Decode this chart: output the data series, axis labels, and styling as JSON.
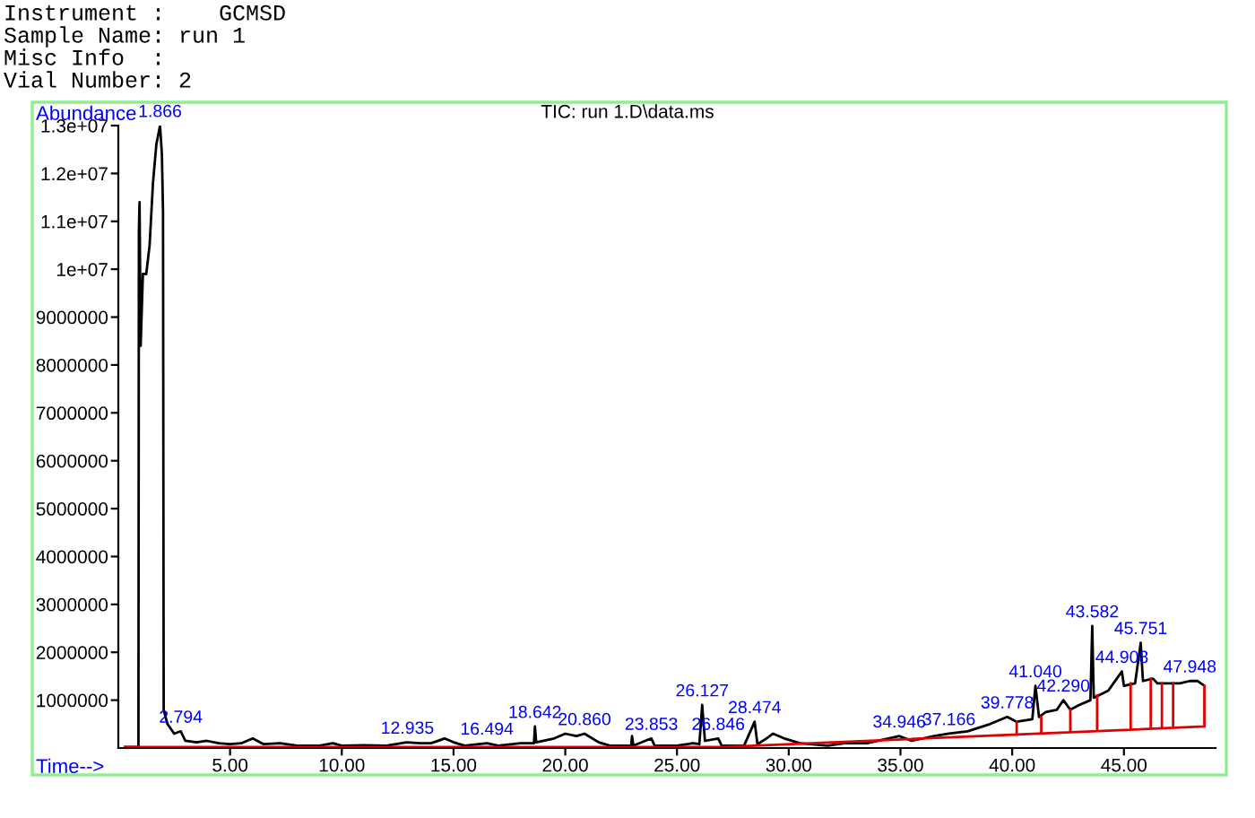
{
  "chart_data": {
    "type": "line",
    "title": "TIC: run 1.D\\data.ms",
    "xlabel": "Time-->",
    "ylabel": "Abundance",
    "xlim": [
      0.0,
      49.1
    ],
    "ylim": [
      0,
      13000000
    ],
    "xticks": [
      {
        "value": 5,
        "label": "5.00"
      },
      {
        "value": 10,
        "label": "10.00"
      },
      {
        "value": 15,
        "label": "15.00"
      },
      {
        "value": 20,
        "label": "20.00"
      },
      {
        "value": 25,
        "label": "25.00"
      },
      {
        "value": 30,
        "label": "30.00"
      },
      {
        "value": 35,
        "label": "35.00"
      },
      {
        "value": 40,
        "label": "40.00"
      },
      {
        "value": 45,
        "label": "45.00"
      }
    ],
    "yticks": [
      1000000,
      2000000,
      3000000,
      4000000,
      5000000,
      6000000,
      7000000,
      8000000,
      9000000,
      {
        "value": 10000000,
        "label": "1e+07"
      },
      {
        "value": 11000000,
        "label": "1.1e+07"
      },
      {
        "value": 12000000,
        "label": "1.2e+07"
      },
      {
        "value": 13000000,
        "label": "1.3e+07"
      }
    ],
    "grid": false,
    "legend": false,
    "series": [
      {
        "color": "#000000",
        "x": [
          0.3,
          0.9,
          0.92,
          0.95,
          1.0,
          1.1,
          1.25,
          1.4,
          1.55,
          1.7,
          1.866,
          1.95,
          2.0,
          2.03,
          2.2,
          2.5,
          2.794,
          3.0,
          3.5,
          3.96,
          4.5,
          5.0,
          5.5,
          6.015,
          6.5,
          7.241,
          8.0,
          9.0,
          9.6,
          10.0,
          11.0,
          12.0,
          12.9,
          13.5,
          14.0,
          14.6,
          15.0,
          15.5,
          16.494,
          17.0,
          18.0,
          18.6,
          18.642,
          18.7,
          19.5,
          20.0,
          20.5,
          20.86,
          21.5,
          22.0,
          22.95,
          22.987,
          23.05,
          23.853,
          24.0,
          25.0,
          25.717,
          26.0,
          26.127,
          26.25,
          26.846,
          27.0,
          28.0,
          28.474,
          28.6,
          29.0,
          29.3,
          29.8,
          30.5,
          31.739,
          32.5,
          33.5,
          34.946,
          35.5,
          36.5,
          37.166,
          38.0,
          39.0,
          39.778,
          40.2,
          40.9,
          41.04,
          41.2,
          41.5,
          42.0,
          42.29,
          42.6,
          43.0,
          43.5,
          43.582,
          43.65,
          44.3,
          44.908,
          45.0,
          45.5,
          45.751,
          45.85,
          46.3,
          46.5,
          47.0,
          47.5,
          47.948,
          48.3,
          48.6
        ],
        "values": [
          20000,
          20000,
          10800000,
          11400000,
          8400000,
          9900000,
          9900000,
          10500000,
          11800000,
          12600000,
          13000000,
          12400000,
          11200000,
          800000,
          500000,
          300000,
          350000,
          150000,
          120000,
          150000,
          100000,
          80000,
          100000,
          200000,
          80000,
          100000,
          50000,
          50000,
          100000,
          50000,
          60000,
          50000,
          120000,
          100000,
          100000,
          200000,
          120000,
          50000,
          100000,
          50000,
          100000,
          100000,
          450000,
          120000,
          200000,
          300000,
          250000,
          300000,
          120000,
          50000,
          50000,
          250000,
          50000,
          200000,
          50000,
          50000,
          100000,
          80000,
          900000,
          150000,
          200000,
          50000,
          50000,
          550000,
          80000,
          200000,
          300000,
          200000,
          100000,
          50000,
          100000,
          100000,
          250000,
          150000,
          250000,
          300000,
          350000,
          500000,
          650000,
          550000,
          600000,
          1300000,
          650000,
          750000,
          800000,
          1000000,
          800000,
          900000,
          1000000,
          2550000,
          1050000,
          1200000,
          1600000,
          1300000,
          1350000,
          2200000,
          1400000,
          1450000,
          1350000,
          1350000,
          1350000,
          1400000,
          1400000,
          1300000
        ]
      },
      {
        "color": "#e00000",
        "x": [
          0.3,
          27.0,
          48.6,
          48.6,
          48.6,
          null,
          40.2,
          40.2,
          null,
          41.3,
          41.3,
          null,
          42.6,
          42.6,
          null,
          43.8,
          43.8,
          null,
          45.3,
          45.3,
          null,
          46.2,
          46.2,
          null,
          46.7,
          46.7,
          null,
          47.2,
          47.2
        ],
        "values": [
          20000,
          20000,
          450000,
          1300000,
          450000,
          null,
          280000,
          550000,
          null,
          310000,
          650000,
          null,
          350000,
          800000,
          null,
          370000,
          1100000,
          null,
          400000,
          1350000,
          null,
          420000,
          1450000,
          null,
          430000,
          1350000,
          null,
          440000,
          1350000
        ]
      }
    ],
    "annotations": [
      "Instrument :    GCMSD",
      "Sample Name: run 1",
      "Misc Info  :",
      "Vial Number: 2",
      {
        "text": "1.866",
        "x": 1.866,
        "y": 13000000
      },
      {
        "text": "2.794",
        "x": 2.794,
        "y": 350000
      },
      {
        "text": "12.935",
        "x": 12.935,
        "y": 120000
      },
      {
        "text": "16.494",
        "x": 16.494,
        "y": 100000
      },
      {
        "text": "18.642",
        "x": 18.642,
        "y": 450000
      },
      {
        "text": "20.860",
        "x": 20.86,
        "y": 300000
      },
      {
        "text": "23.853",
        "x": 23.853,
        "y": 200000
      },
      {
        "text": "26.127",
        "x": 26.127,
        "y": 900000
      },
      {
        "text": "26.846",
        "x": 26.846,
        "y": 200000
      },
      {
        "text": "28.474",
        "x": 28.474,
        "y": 550000
      },
      {
        "text": "34.946",
        "x": 34.946,
        "y": 250000
      },
      {
        "text": "37.166",
        "x": 37.166,
        "y": 300000
      },
      {
        "text": "39.778",
        "x": 39.778,
        "y": 650000
      },
      {
        "text": "41.040",
        "x": 41.04,
        "y": 1300000
      },
      {
        "text": "42.290",
        "x": 42.29,
        "y": 1000000
      },
      {
        "text": "43.582",
        "x": 43.582,
        "y": 2550000
      },
      {
        "text": "44.908",
        "x": 44.908,
        "y": 1600000
      },
      {
        "text": "45.751",
        "x": 45.751,
        "y": 2200000
      },
      {
        "text": "47.948",
        "x": 47.948,
        "y": 1400000
      }
    ]
  }
}
